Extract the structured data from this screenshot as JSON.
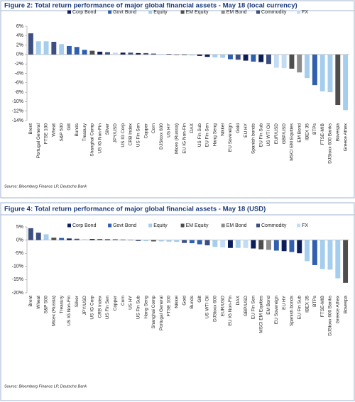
{
  "chart_data": [
    {
      "type": "bar",
      "title": "Figure 2: Total return performance of major global financial assets - May 18 (local currency)",
      "source": "Source: Bloomberg Finance LP, Deutsche Bank",
      "categories": [
        "Brent",
        "Portugal General",
        "FTSE 100",
        "Wheat",
        "S&P 500",
        "Gilt",
        "Bunds",
        "Treasury",
        "Shanghai Comp",
        "US IG Non-Fin",
        "Silver",
        "JPY/USD",
        "US IG Corp",
        "CRB Index",
        "US Fin Sen",
        "Copper",
        "Corn",
        "DJStoxx 600",
        "US HY",
        "Micex (Russia)",
        "EU IG Non-Fin",
        "DAX",
        "US Fin Sub",
        "EU Fin Sen",
        "Hang Seng",
        "Nikkei",
        "EU Sovereign",
        "Gold",
        "EU HY",
        "Spanish bonds",
        "EU Fin Sub",
        "US WTI Oil",
        "EUR/USD",
        "GBP/USD",
        "MSCI EM Equities",
        "EM Bond",
        "IBEX 35",
        "BTPs",
        "FTSE-MIB",
        "DJStoxx 600 Banks",
        "Bovespa",
        "Greece Athex"
      ],
      "series": [
        {
          "name": "Corp Bond",
          "color": "#0b1e5b",
          "values": [
            null,
            null,
            null,
            null,
            null,
            null,
            null,
            null,
            null,
            0.6,
            null,
            null,
            0.4,
            null,
            0.3,
            null,
            null,
            null,
            0.1,
            null,
            -0.1,
            null,
            -0.3,
            -0.5,
            null,
            null,
            null,
            null,
            -1.3,
            null,
            -1.6,
            null,
            null,
            null,
            null,
            null,
            null,
            null,
            null,
            null,
            null,
            null
          ]
        },
        {
          "name": "Govt Bond",
          "color": "#2f5fae",
          "values": [
            null,
            null,
            null,
            null,
            null,
            1.8,
            1.6,
            1.0,
            null,
            null,
            null,
            null,
            null,
            null,
            null,
            null,
            null,
            null,
            null,
            null,
            null,
            null,
            null,
            null,
            null,
            null,
            -1.0,
            null,
            null,
            -1.5,
            null,
            null,
            null,
            null,
            null,
            null,
            null,
            -6.5,
            null,
            null,
            null,
            null
          ]
        },
        {
          "name": "Equity",
          "color": "#a5cdee",
          "values": [
            null,
            2.8,
            2.8,
            null,
            2.2,
            null,
            null,
            null,
            null,
            null,
            null,
            null,
            null,
            null,
            null,
            null,
            null,
            0.1,
            null,
            null,
            null,
            -0.2,
            null,
            null,
            -0.6,
            -0.7,
            null,
            null,
            null,
            null,
            null,
            null,
            null,
            null,
            null,
            null,
            -5.0,
            null,
            -7.8,
            -8.0,
            null,
            -11.8
          ]
        },
        {
          "name": "EM Equity",
          "color": "#4d4d4d",
          "values": [
            null,
            null,
            null,
            null,
            null,
            null,
            null,
            null,
            0.8,
            null,
            null,
            null,
            null,
            null,
            null,
            null,
            null,
            null,
            null,
            -0.1,
            null,
            null,
            null,
            null,
            null,
            null,
            null,
            null,
            null,
            null,
            null,
            null,
            null,
            null,
            -3.0,
            null,
            null,
            null,
            null,
            null,
            -10.7,
            null
          ]
        },
        {
          "name": "EM Bond",
          "color": "#8c8c8c",
          "values": [
            null,
            null,
            null,
            null,
            null,
            null,
            null,
            null,
            null,
            null,
            null,
            null,
            null,
            null,
            null,
            null,
            null,
            null,
            null,
            null,
            null,
            null,
            null,
            null,
            null,
            null,
            null,
            null,
            null,
            null,
            null,
            null,
            null,
            null,
            null,
            -3.8,
            null,
            null,
            null,
            null,
            null,
            null
          ]
        },
        {
          "name": "Commodity",
          "color": "#3d4f82",
          "values": [
            4.5,
            null,
            null,
            2.7,
            null,
            null,
            null,
            null,
            null,
            null,
            0.5,
            null,
            null,
            0.4,
            null,
            0.3,
            0.2,
            null,
            null,
            null,
            null,
            null,
            null,
            null,
            null,
            null,
            null,
            -1.1,
            null,
            null,
            null,
            -2.0,
            null,
            null,
            null,
            null,
            null,
            null,
            null,
            null,
            null,
            null
          ]
        },
        {
          "name": "FX",
          "color": "#c3dcf2",
          "values": [
            null,
            null,
            null,
            null,
            null,
            null,
            null,
            null,
            null,
            null,
            null,
            0.4,
            null,
            null,
            null,
            null,
            null,
            null,
            null,
            null,
            null,
            null,
            null,
            null,
            null,
            null,
            null,
            null,
            null,
            null,
            null,
            null,
            -2.8,
            -2.9,
            null,
            null,
            null,
            null,
            null,
            null,
            null,
            null
          ]
        }
      ],
      "ylim": [
        -14,
        6
      ],
      "yticks": [
        {
          "value": -14,
          "label": "-14%"
        },
        {
          "value": -12,
          "label": "-12%"
        },
        {
          "value": -10,
          "label": "-10%"
        },
        {
          "value": -8,
          "label": "-8%"
        },
        {
          "value": -6,
          "label": "-6%"
        },
        {
          "value": -4,
          "label": "-4%"
        },
        {
          "value": -2,
          "label": "-2%"
        },
        {
          "value": 0,
          "label": "0%"
        },
        {
          "value": 2,
          "label": "2%"
        },
        {
          "value": 4,
          "label": "4%"
        },
        {
          "value": 6,
          "label": "6%"
        }
      ],
      "legend": "top"
    },
    {
      "type": "bar",
      "title": "Figure 4: Total return performance of major global financial assets - May 18 (USD)",
      "source": "Source: Bloomberg Finance LP, Deutsche Bank",
      "categories": [
        "Brent",
        "Wheat",
        "S&P 500",
        "Micex (Russia)",
        "Treasury",
        "US IG Non-Fin",
        "Silver",
        "JPY/USD",
        "US IG Corp",
        "CRB Index",
        "US Fin Sen",
        "Copper",
        "Corn",
        "US HY",
        "US Fin Sub",
        "Hang Seng",
        "Shanghai Comp",
        "Portugal General",
        "FTSE 100",
        "Nikkei",
        "Gold",
        "Bunds",
        "Gilt",
        "US WTI Oil",
        "DJStoxx 600",
        "EUR/USD",
        "EU IG Non-Fin",
        "DAX",
        "GBP/USD",
        "EU Fin Sen",
        "MSCI EM Equities",
        "EM Bond",
        "EU Sovereign",
        "EU HY",
        "Spanish bonds",
        "EU Fin Sub",
        "IBEX 35",
        "BTPs",
        "FTSE-MIB",
        "DJStoxx 600 Banks",
        "Greece Athex",
        "Bovespa"
      ],
      "series": [
        {
          "name": "Corp Bond",
          "color": "#0b1e5b",
          "values": [
            null,
            null,
            null,
            null,
            null,
            0.6,
            null,
            null,
            0.4,
            null,
            0.3,
            null,
            null,
            0.1,
            -0.3,
            null,
            null,
            null,
            null,
            null,
            null,
            null,
            null,
            null,
            null,
            null,
            -3.0,
            null,
            null,
            -3.2,
            null,
            null,
            null,
            -4.2,
            null,
            -5.0,
            null,
            null,
            null,
            null,
            null,
            null
          ]
        },
        {
          "name": "Govt Bond",
          "color": "#2f5fae",
          "values": [
            null,
            null,
            null,
            null,
            0.8,
            null,
            null,
            null,
            null,
            null,
            null,
            null,
            null,
            null,
            null,
            null,
            null,
            null,
            null,
            null,
            null,
            -1.2,
            -1.6,
            null,
            null,
            null,
            null,
            null,
            null,
            null,
            null,
            null,
            -4.0,
            null,
            -4.5,
            null,
            null,
            -9.5,
            null,
            null,
            null,
            null
          ]
        },
        {
          "name": "Equity",
          "color": "#a5cdee",
          "values": [
            null,
            null,
            2.2,
            null,
            null,
            null,
            null,
            null,
            null,
            null,
            null,
            null,
            null,
            null,
            null,
            -0.4,
            null,
            -0.5,
            -0.6,
            -0.7,
            null,
            null,
            null,
            null,
            -2.6,
            null,
            null,
            -3.0,
            null,
            null,
            null,
            null,
            null,
            null,
            null,
            null,
            -8.0,
            null,
            -11.0,
            -11.2,
            -14.5,
            null
          ]
        },
        {
          "name": "EM Equity",
          "color": "#4d4d4d",
          "values": [
            null,
            null,
            null,
            0.9,
            null,
            null,
            null,
            null,
            null,
            null,
            null,
            null,
            null,
            null,
            null,
            null,
            -0.5,
            null,
            null,
            null,
            null,
            null,
            null,
            null,
            null,
            null,
            null,
            null,
            null,
            null,
            -3.5,
            null,
            null,
            null,
            null,
            null,
            null,
            null,
            null,
            null,
            null,
            -16.2
          ]
        },
        {
          "name": "EM Bond",
          "color": "#8c8c8c",
          "values": [
            null,
            null,
            null,
            null,
            null,
            null,
            null,
            null,
            null,
            null,
            null,
            null,
            null,
            null,
            null,
            null,
            null,
            null,
            null,
            null,
            null,
            null,
            null,
            null,
            null,
            null,
            null,
            null,
            null,
            null,
            null,
            -3.7,
            null,
            null,
            null,
            null,
            null,
            null,
            null,
            null,
            null,
            null
          ]
        },
        {
          "name": "Commodity",
          "color": "#3d4f82",
          "values": [
            4.5,
            2.8,
            null,
            null,
            null,
            null,
            0.5,
            null,
            null,
            0.4,
            null,
            0.3,
            0.2,
            null,
            null,
            null,
            null,
            null,
            null,
            null,
            -1.1,
            null,
            null,
            -2.0,
            null,
            null,
            null,
            null,
            null,
            null,
            null,
            null,
            null,
            null,
            null,
            null,
            null,
            null,
            null,
            null,
            null,
            null
          ]
        },
        {
          "name": "FX",
          "color": "#c3dcf2",
          "values": [
            null,
            null,
            null,
            null,
            null,
            null,
            null,
            0.4,
            null,
            null,
            null,
            null,
            null,
            null,
            null,
            null,
            null,
            null,
            null,
            null,
            null,
            null,
            null,
            null,
            null,
            -2.8,
            null,
            null,
            -3.0,
            null,
            null,
            null,
            null,
            null,
            null,
            null,
            null,
            null,
            null,
            null,
            null,
            null
          ]
        }
      ],
      "ylim": [
        -20,
        5
      ],
      "yticks": [
        {
          "value": -20,
          "label": "-20%"
        },
        {
          "value": -15,
          "label": "-15%"
        },
        {
          "value": -10,
          "label": "-10%"
        },
        {
          "value": -5,
          "label": "-5%"
        },
        {
          "value": 0,
          "label": "0%"
        },
        {
          "value": 5,
          "label": "5%"
        }
      ],
      "legend": "top"
    }
  ]
}
